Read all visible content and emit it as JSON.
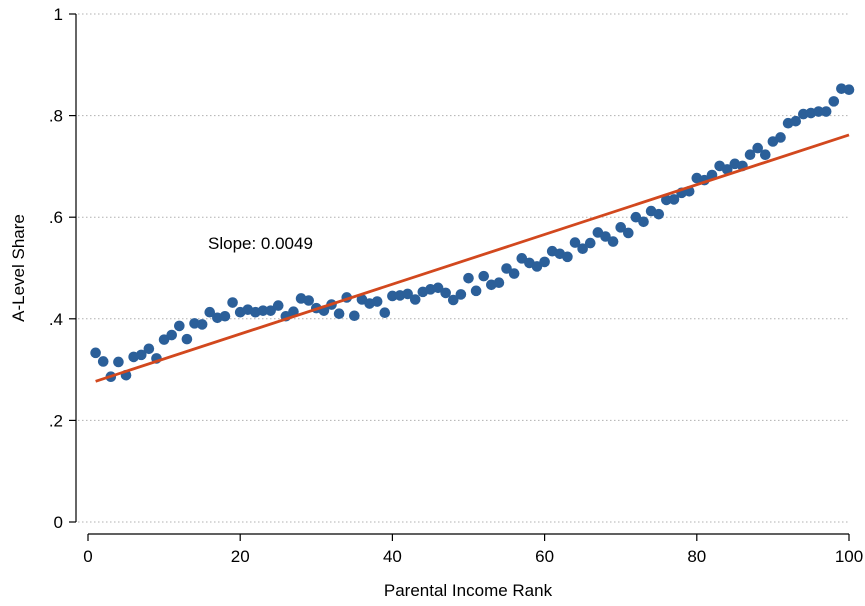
{
  "chart_data": {
    "type": "scatter",
    "xlabel": "Parental Income Rank",
    "ylabel": "A-Level Share",
    "xlim": [
      0,
      100
    ],
    "ylim": [
      0,
      1
    ],
    "xticks": [
      0,
      20,
      40,
      60,
      80,
      100
    ],
    "xtick_labels": [
      "0",
      "20",
      "40",
      "60",
      "80",
      "100"
    ],
    "yticks": [
      0,
      0.2,
      0.4,
      0.6,
      0.8,
      1
    ],
    "ytick_labels": [
      "0",
      ".2",
      ".4",
      ".6",
      ".8",
      "1"
    ],
    "grid": "horizontal dotted",
    "annotation": "Slope: 0.0049",
    "colors": {
      "points": "#2b5f99",
      "fit_line": "#d2481e"
    },
    "fit_line": {
      "x": [
        1,
        100
      ],
      "y": [
        0.277,
        0.762
      ]
    },
    "series": [
      {
        "x": [
          1,
          2,
          3,
          4,
          5,
          6,
          7,
          8,
          9,
          10,
          11,
          12,
          13,
          14,
          15,
          16,
          17,
          18,
          19,
          20,
          21,
          22,
          23,
          24,
          25,
          26,
          27,
          28,
          29,
          30,
          31,
          32,
          33,
          34,
          35,
          36,
          37,
          38,
          39,
          40,
          41,
          42,
          43,
          44,
          45,
          46,
          47,
          48,
          49,
          50,
          51,
          52,
          53,
          54,
          55,
          56,
          57,
          58,
          59,
          60,
          61,
          62,
          63,
          64,
          65,
          66,
          67,
          68,
          69,
          70,
          71,
          72,
          73,
          74,
          75,
          76,
          77,
          78,
          79,
          80,
          81,
          82,
          83,
          84,
          85,
          86,
          87,
          88,
          89,
          90,
          91,
          92,
          93,
          94,
          95,
          96,
          97,
          98,
          99,
          100
        ],
        "y": [
          0.333,
          0.316,
          0.286,
          0.315,
          0.289,
          0.325,
          0.329,
          0.341,
          0.322,
          0.359,
          0.368,
          0.386,
          0.36,
          0.391,
          0.389,
          0.413,
          0.402,
          0.405,
          0.432,
          0.413,
          0.418,
          0.413,
          0.416,
          0.416,
          0.426,
          0.405,
          0.414,
          0.44,
          0.436,
          0.421,
          0.416,
          0.428,
          0.41,
          0.442,
          0.406,
          0.438,
          0.43,
          0.434,
          0.412,
          0.445,
          0.446,
          0.449,
          0.438,
          0.453,
          0.458,
          0.461,
          0.451,
          0.437,
          0.448,
          0.48,
          0.455,
          0.484,
          0.467,
          0.471,
          0.499,
          0.489,
          0.519,
          0.51,
          0.503,
          0.512,
          0.533,
          0.528,
          0.522,
          0.55,
          0.538,
          0.549,
          0.57,
          0.562,
          0.552,
          0.58,
          0.569,
          0.6,
          0.591,
          0.612,
          0.606,
          0.634,
          0.635,
          0.648,
          0.651,
          0.677,
          0.673,
          0.683,
          0.701,
          0.694,
          0.705,
          0.701,
          0.723,
          0.736,
          0.723,
          0.749,
          0.757,
          0.785,
          0.789,
          0.803,
          0.805,
          0.808,
          0.808,
          0.828,
          0.853,
          0.851
        ]
      }
    ]
  }
}
